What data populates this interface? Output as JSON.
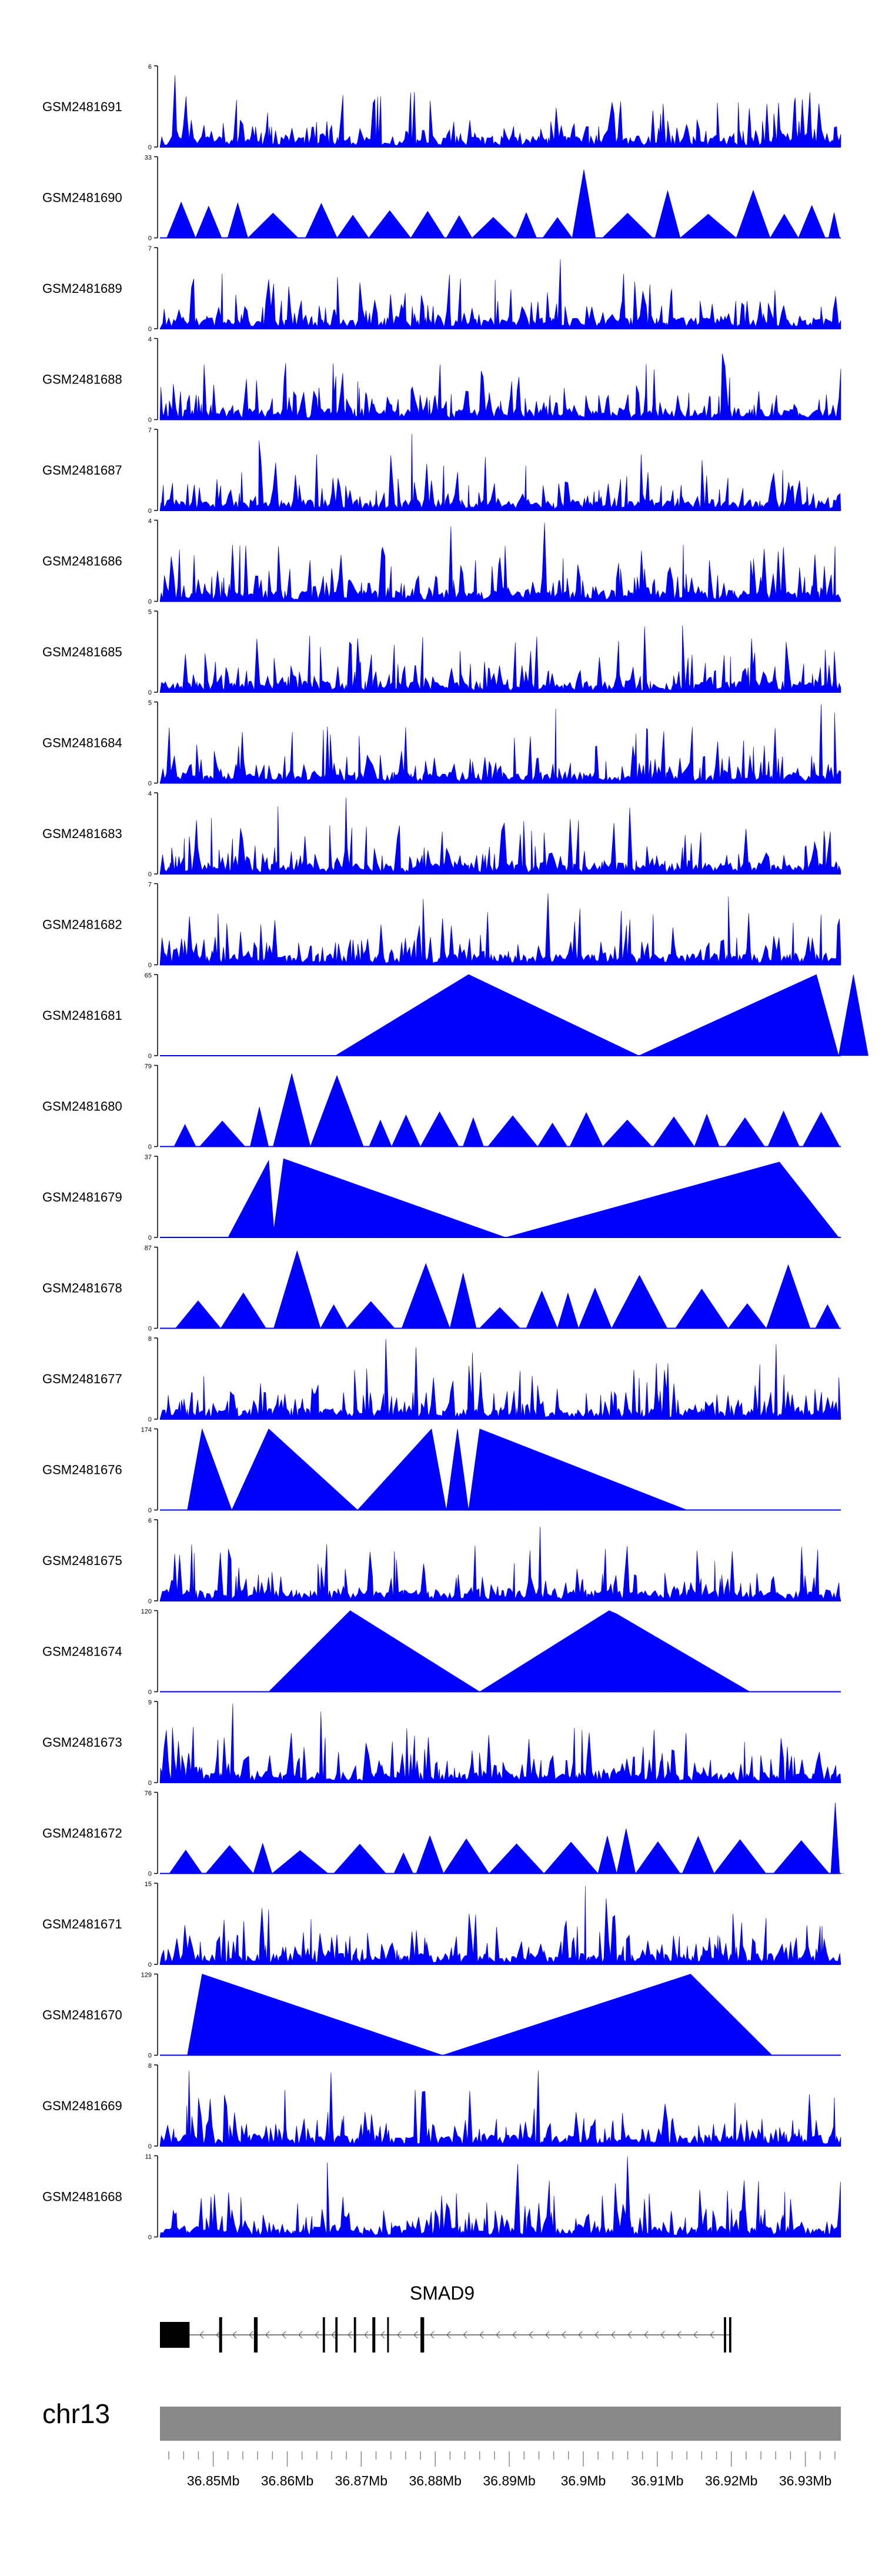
{
  "chart_data": {
    "type": "area",
    "title": "",
    "color": "#0000ff",
    "tracks": [
      {
        "name": "GSM2481691",
        "ymax": "6",
        "ymin": "0",
        "pattern": "dense"
      },
      {
        "name": "GSM2481690",
        "ymax": "33",
        "ymin": "0",
        "pattern": "sparse"
      },
      {
        "name": "GSM2481689",
        "ymax": "7",
        "ymin": "0",
        "pattern": "dense"
      },
      {
        "name": "GSM2481688",
        "ymax": "4",
        "ymin": "0",
        "pattern": "dense"
      },
      {
        "name": "GSM2481687",
        "ymax": "7",
        "ymin": "0",
        "pattern": "dense"
      },
      {
        "name": "GSM2481686",
        "ymax": "4",
        "ymin": "0",
        "pattern": "dense"
      },
      {
        "name": "GSM2481685",
        "ymax": "5",
        "ymin": "0",
        "pattern": "dense"
      },
      {
        "name": "GSM2481684",
        "ymax": "5",
        "ymin": "0",
        "pattern": "dense"
      },
      {
        "name": "GSM2481683",
        "ymax": "4",
        "ymin": "0",
        "pattern": "dense"
      },
      {
        "name": "GSM2481682",
        "ymax": "7",
        "ymin": "0",
        "pattern": "dense"
      },
      {
        "name": "GSM2481681",
        "ymax": "65",
        "ymin": "0",
        "pattern": "peaks",
        "points": [
          [
            36.8665,
            0
          ],
          [
            36.8845,
            1
          ],
          [
            36.9075,
            0
          ],
          [
            36.9315,
            1
          ],
          [
            36.9345,
            0
          ],
          [
            36.9365,
            1
          ],
          [
            36.9385,
            0
          ]
        ]
      },
      {
        "name": "GSM2481680",
        "ymax": "79",
        "ymin": "0",
        "pattern": "sparse"
      },
      {
        "name": "GSM2481679",
        "ymax": "37",
        "ymin": "0",
        "pattern": "peaks",
        "points": [
          [
            36.852,
            0
          ],
          [
            36.8575,
            0.95
          ],
          [
            36.8582,
            0.1
          ],
          [
            36.8595,
            0.97
          ],
          [
            36.8895,
            0
          ],
          [
            36.9265,
            0.93
          ],
          [
            36.9345,
            0
          ]
        ]
      },
      {
        "name": "GSM2481678",
        "ymax": "87",
        "ymin": "0",
        "pattern": "sparse"
      },
      {
        "name": "GSM2481677",
        "ymax": "8",
        "ymin": "0",
        "pattern": "dense"
      },
      {
        "name": "GSM2481676",
        "ymax": "174",
        "ymin": "0",
        "pattern": "peaks",
        "points": [
          [
            36.8465,
            0
          ],
          [
            36.8485,
            1
          ],
          [
            36.8525,
            0
          ],
          [
            36.8575,
            1
          ],
          [
            36.8695,
            0
          ],
          [
            36.8795,
            1
          ],
          [
            36.8815,
            0
          ],
          [
            36.883,
            1
          ],
          [
            36.8845,
            0
          ],
          [
            36.886,
            1
          ],
          [
            36.914,
            0
          ]
        ]
      },
      {
        "name": "GSM2481675",
        "ymax": "6",
        "ymin": "0",
        "pattern": "dense"
      },
      {
        "name": "GSM2481674",
        "ymax": "120",
        "ymin": "0",
        "pattern": "peaks",
        "points": [
          [
            36.8575,
            0
          ],
          [
            36.8685,
            1
          ],
          [
            36.886,
            0
          ],
          [
            36.9035,
            1
          ],
          [
            36.9045,
            0.96
          ],
          [
            36.9225,
            0
          ]
        ]
      },
      {
        "name": "GSM2481673",
        "ymax": "9",
        "ymin": "0",
        "pattern": "dense"
      },
      {
        "name": "GSM2481672",
        "ymax": "76",
        "ymin": "0",
        "pattern": "sparse"
      },
      {
        "name": "GSM2481671",
        "ymax": "15",
        "ymin": "0",
        "pattern": "dense"
      },
      {
        "name": "GSM2481670",
        "ymax": "129",
        "ymin": "0",
        "pattern": "peaks",
        "points": [
          [
            36.8465,
            0
          ],
          [
            36.8485,
            1
          ],
          [
            36.881,
            0
          ],
          [
            36.9145,
            1
          ],
          [
            36.9255,
            0
          ]
        ]
      },
      {
        "name": "GSM2481669",
        "ymax": "8",
        "ymin": "0",
        "pattern": "dense"
      },
      {
        "name": "GSM2481668",
        "ymax": "11",
        "ymin": "0",
        "pattern": "dense"
      }
    ],
    "xaxis": {
      "chromosome": "chr13",
      "range_mb": [
        36.8428,
        36.9348
      ],
      "ticks": [
        {
          "value": 36.85,
          "label": "36.85Mb"
        },
        {
          "value": 36.86,
          "label": "36.86Mb"
        },
        {
          "value": 36.87,
          "label": "36.87Mb"
        },
        {
          "value": 36.88,
          "label": "36.88Mb"
        },
        {
          "value": 36.89,
          "label": "36.89Mb"
        },
        {
          "value": 36.9,
          "label": "36.9Mb"
        },
        {
          "value": 36.91,
          "label": "36.91Mb"
        },
        {
          "value": 36.92,
          "label": "36.92Mb"
        },
        {
          "value": 36.93,
          "label": "36.93Mb"
        }
      ],
      "minor_step": 0.002
    },
    "gene": {
      "name": "SMAD9",
      "strand": "-",
      "start": 36.8428,
      "end": 36.92,
      "exons": [
        {
          "start": 36.8428,
          "end": 36.8468
        },
        {
          "start": 36.8508,
          "end": 36.8512
        },
        {
          "start": 36.8555,
          "end": 36.856
        },
        {
          "start": 36.8648,
          "end": 36.8651
        },
        {
          "start": 36.8665,
          "end": 36.8668
        },
        {
          "start": 36.869,
          "end": 36.8693
        },
        {
          "start": 36.8715,
          "end": 36.8719
        },
        {
          "start": 36.8735,
          "end": 36.8737
        },
        {
          "start": 36.878,
          "end": 36.8785
        },
        {
          "start": 36.919,
          "end": 36.9193
        },
        {
          "start": 36.9197,
          "end": 36.92
        }
      ]
    }
  }
}
